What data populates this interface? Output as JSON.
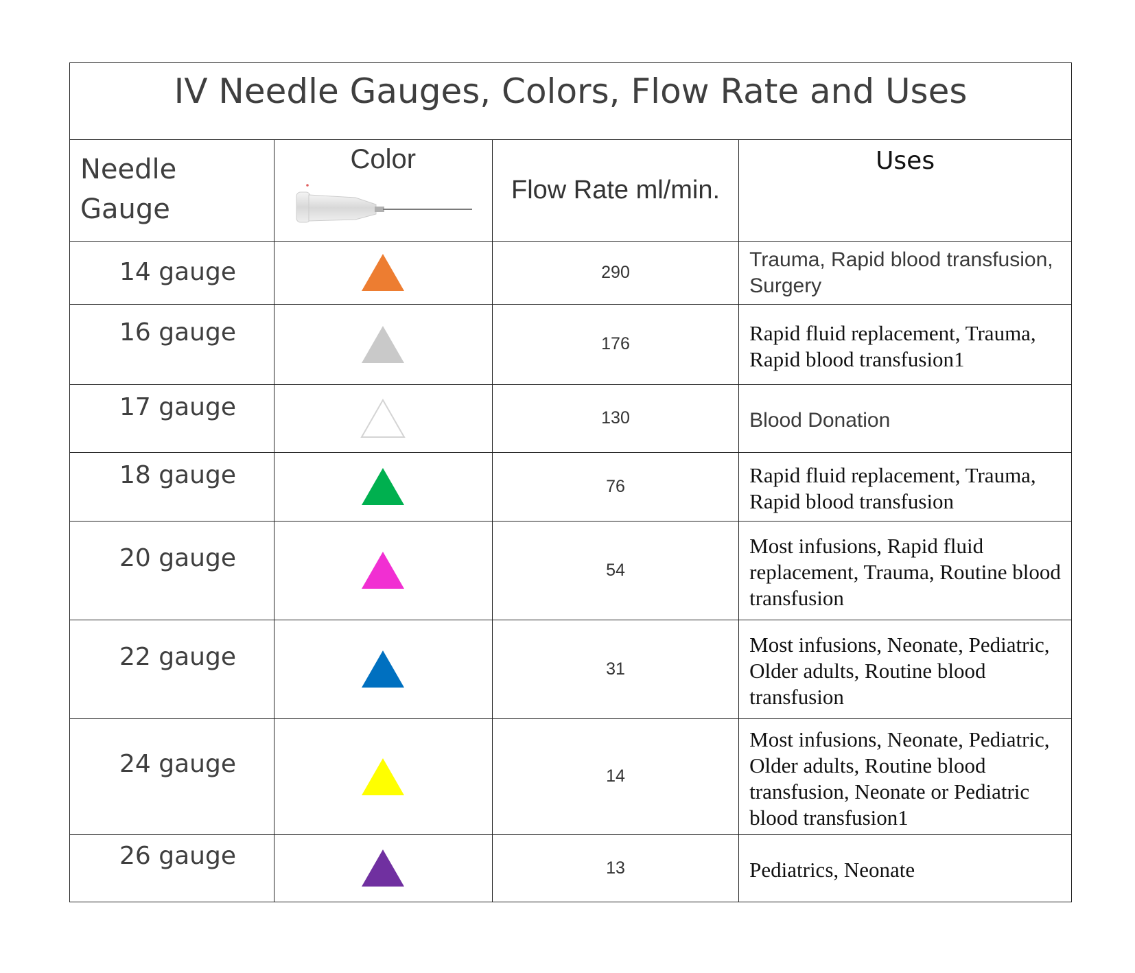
{
  "title": "IV Needle Gauges, Colors, Flow Rate and Uses",
  "headers": {
    "gauge": "Needle Gauge",
    "color": "Color",
    "flow": "Flow Rate ml/min.",
    "uses": "Uses"
  },
  "rows": [
    {
      "gauge": "14 gauge",
      "color": "#ED7D31",
      "color_name": "orange",
      "flow": "290",
      "uses": "Trauma, Rapid blood transfusion, Surgery"
    },
    {
      "gauge": "16 gauge",
      "color": "#C9C9C9",
      "color_name": "gray",
      "flow": "176",
      "uses": "Rapid fluid replacement, Trauma, Rapid blood transfusion1"
    },
    {
      "gauge": "17 gauge",
      "color": "#FFFFFF",
      "color_name": "white",
      "flow": "130",
      "uses": "Blood Donation"
    },
    {
      "gauge": "18 gauge",
      "color": "#00B04F",
      "color_name": "green",
      "flow": "76",
      "uses": "Rapid fluid replacement, Trauma, Rapid blood transfusion"
    },
    {
      "gauge": "20 gauge",
      "color": "#F12FD2",
      "color_name": "pink",
      "flow": "54",
      "uses": "Most infusions, Rapid fluid replacement, Trauma, Routine blood transfusion"
    },
    {
      "gauge": "22 gauge",
      "color": "#0070C0",
      "color_name": "blue",
      "flow": "31",
      "uses": "Most infusions, Neonate, Pediatric, Older adults, Routine blood transfusion"
    },
    {
      "gauge": "24 gauge",
      "color": "#FFFF00",
      "color_name": "yellow",
      "flow": "14",
      "uses": "Most infusions, Neonate, Pediatric, Older adults, Routine blood transfusion, Neonate or Pediatric blood transfusion1"
    },
    {
      "gauge": "26 gauge",
      "color": "#7030A0",
      "color_name": "purple",
      "flow": "13",
      "uses": "Pediatrics, Neonate"
    }
  ]
}
